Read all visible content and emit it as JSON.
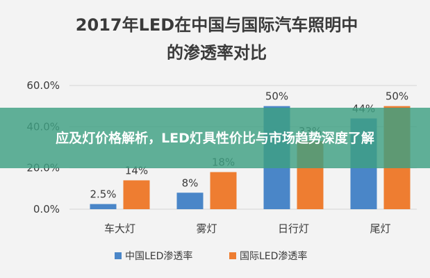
{
  "banner": {
    "text": "应及灯价格解析，LED灯具性价比与市场趋势深度了解",
    "color": "#3ea082"
  },
  "chart_data": {
    "type": "bar",
    "title": "2017年LED在中国与国际汽车照明中",
    "subtitle": "的渗透率对比",
    "categories": [
      "车大灯",
      "雾灯",
      "日行灯",
      "尾灯"
    ],
    "series": [
      {
        "name": "中国LED渗透率",
        "color": "#4a86c8",
        "values": [
          2.5,
          8,
          50,
          44
        ],
        "labels": [
          "2.5%",
          "8%",
          "50%",
          "44%"
        ]
      },
      {
        "name": "国际LED渗透率",
        "color": "#ee7d31",
        "values": [
          14,
          18,
          33,
          50
        ],
        "labels": [
          "14%",
          "18%",
          "33%",
          "50%"
        ]
      }
    ],
    "yticks": [
      "0.0%",
      "20.0%",
      "40.0%",
      "60.0%"
    ],
    "ytick_values": [
      0,
      20,
      40,
      60
    ],
    "ylim": [
      0,
      60
    ],
    "grid": true,
    "legend_position": "bottom"
  }
}
